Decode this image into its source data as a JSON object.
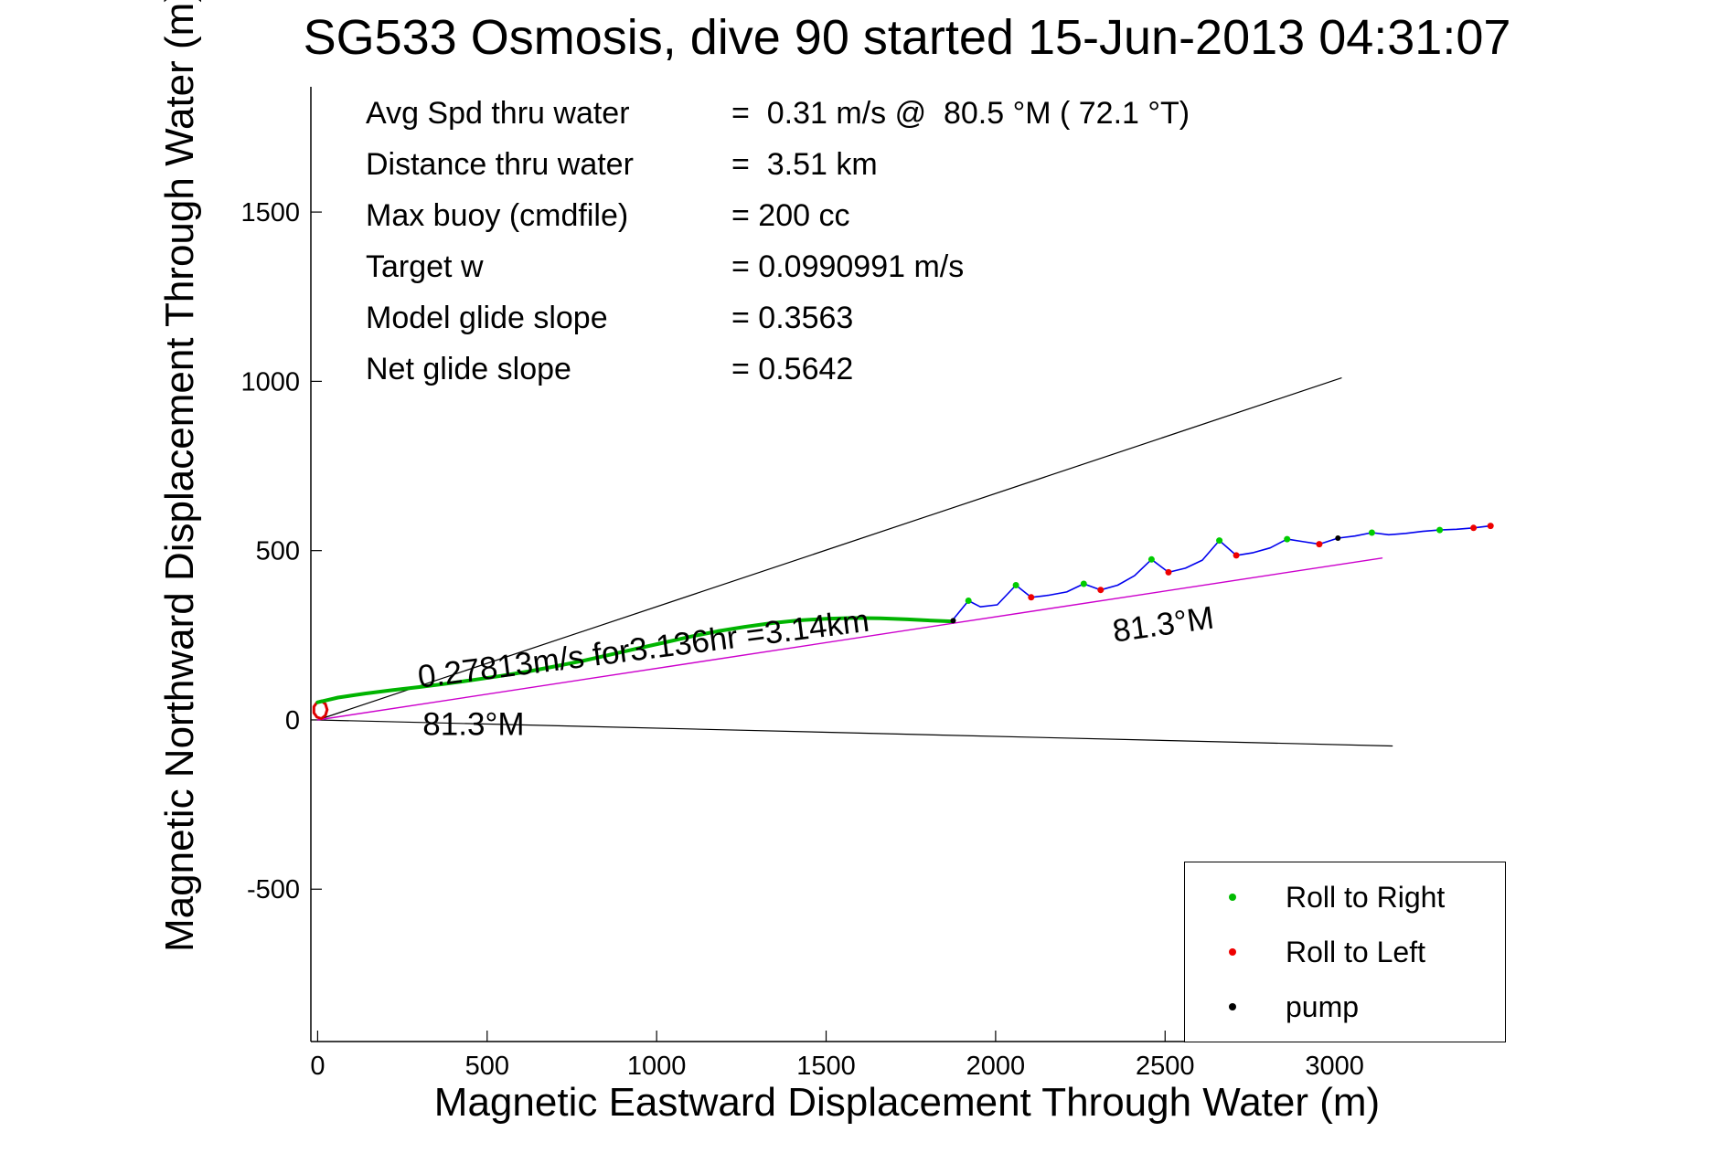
{
  "title": "SG533 Osmosis, dive 90 started 15-Jun-2013 04:31:07",
  "stats": [
    {
      "label": "Avg Spd thru water",
      "value": "=  0.31 m/s @  80.5 °M ( 72.1 °T)"
    },
    {
      "label": "Distance thru water",
      "value": "=  3.51 km"
    },
    {
      "label": "Max buoy (cmdfile)",
      "value": "= 200 cc"
    },
    {
      "label": "Target w",
      "value": "= 0.0990991 m/s"
    },
    {
      "label": "Model glide slope",
      "value": "= 0.3563"
    },
    {
      "label": "Net glide slope",
      "value": "= 0.5642"
    }
  ],
  "legend": {
    "position": "lower-right",
    "items": [
      {
        "name": "roll-right",
        "label": "Roll to Right",
        "color": "#00bb00"
      },
      {
        "name": "roll-left",
        "label": "Roll to Left",
        "color": "#ee0000"
      },
      {
        "name": "pump",
        "label": "pump",
        "color": "#000000"
      }
    ]
  },
  "chart_data": {
    "type": "line",
    "title": "SG533 Osmosis, dive 90 started 15-Jun-2013 04:31:07",
    "xlabel": "Magnetic Eastward Displacement Through Water (m)",
    "ylabel": "Magnetic Northward Displacement Through Water (m)",
    "xlim": [
      -20,
      3500
    ],
    "ylim": [
      -950,
      1870
    ],
    "xticks": [
      0,
      500,
      1000,
      1500,
      2000,
      2500,
      3000
    ],
    "yticks": [
      -500,
      0,
      500,
      1000,
      1500
    ],
    "grid": false,
    "box": false,
    "annotations": [
      {
        "text": "0.27813m/s for3.136hr =3.14km",
        "x": 300,
        "y": 95,
        "rotation": -7.2
      },
      {
        "text": "81.3°M",
        "x": 310,
        "y": -45,
        "rotation": 0
      },
      {
        "text": "81.3°M",
        "x": 2350,
        "y": 230,
        "rotation": -8
      }
    ],
    "series": [
      {
        "name": "bearing-fan-upper",
        "type": "line",
        "color": "#000000",
        "width": 1.2,
        "points": [
          [
            0,
            0
          ],
          [
            3020,
            1010
          ]
        ]
      },
      {
        "name": "bearing-fan-lower",
        "type": "line",
        "color": "#000000",
        "width": 1.2,
        "points": [
          [
            0,
            0
          ],
          [
            3170,
            -77
          ]
        ]
      },
      {
        "name": "desired-track-81.3M",
        "type": "line",
        "color": "#cc00cc",
        "width": 1.4,
        "points": [
          [
            0,
            0
          ],
          [
            3140,
            478
          ]
        ]
      },
      {
        "name": "dive-start-loop",
        "type": "line",
        "color": "#dd0000",
        "width": 3,
        "points": [
          [
            28,
            30
          ],
          [
            23,
            47
          ],
          [
            11,
            56
          ],
          [
            -2,
            52
          ],
          [
            -11,
            39
          ],
          [
            -11,
            21
          ],
          [
            -2,
            8
          ],
          [
            11,
            4
          ],
          [
            23,
            13
          ],
          [
            28,
            30
          ]
        ]
      },
      {
        "name": "glide-track-through-water",
        "type": "line",
        "color": "#00b400",
        "width": 4,
        "points": [
          [
            0,
            52
          ],
          [
            60,
            66
          ],
          [
            140,
            78
          ],
          [
            220,
            88
          ],
          [
            300,
            97
          ],
          [
            380,
            107
          ],
          [
            460,
            118
          ],
          [
            540,
            130
          ],
          [
            620,
            143
          ],
          [
            700,
            158
          ],
          [
            780,
            174
          ],
          [
            860,
            192
          ],
          [
            940,
            210
          ],
          [
            1020,
            228
          ],
          [
            1100,
            246
          ],
          [
            1180,
            262
          ],
          [
            1260,
            275
          ],
          [
            1340,
            286
          ],
          [
            1420,
            294
          ],
          [
            1500,
            299
          ],
          [
            1580,
            301
          ],
          [
            1660,
            300
          ],
          [
            1740,
            297
          ],
          [
            1820,
            293
          ],
          [
            1870,
            291
          ]
        ]
      },
      {
        "name": "surface-drift-track",
        "type": "line",
        "color": "#0000ee",
        "width": 1.6,
        "points": [
          [
            1870,
            291
          ],
          [
            1920,
            352
          ],
          [
            1955,
            334
          ],
          [
            2005,
            340
          ],
          [
            2060,
            398
          ],
          [
            2105,
            362
          ],
          [
            2155,
            368
          ],
          [
            2210,
            378
          ],
          [
            2260,
            402
          ],
          [
            2310,
            384
          ],
          [
            2360,
            398
          ],
          [
            2410,
            426
          ],
          [
            2460,
            474
          ],
          [
            2510,
            436
          ],
          [
            2560,
            448
          ],
          [
            2610,
            472
          ],
          [
            2660,
            530
          ],
          [
            2710,
            486
          ],
          [
            2760,
            494
          ],
          [
            2810,
            508
          ],
          [
            2860,
            534
          ],
          [
            2910,
            526
          ],
          [
            2955,
            519
          ],
          [
            3010,
            537
          ],
          [
            3060,
            543
          ],
          [
            3110,
            553
          ],
          [
            3160,
            547
          ],
          [
            3210,
            551
          ],
          [
            3260,
            557
          ],
          [
            3310,
            561
          ],
          [
            3360,
            563
          ],
          [
            3410,
            567
          ],
          [
            3460,
            573
          ]
        ]
      },
      {
        "name": "roll-right-markers",
        "type": "scatter",
        "color": "#00cc00",
        "size": 3.5,
        "points": [
          [
            1920,
            352
          ],
          [
            2060,
            398
          ],
          [
            2260,
            402
          ],
          [
            2460,
            474
          ],
          [
            2660,
            530
          ],
          [
            2860,
            534
          ],
          [
            3110,
            553
          ],
          [
            3310,
            561
          ]
        ]
      },
      {
        "name": "roll-left-markers",
        "type": "scatter",
        "color": "#ee0000",
        "size": 3.5,
        "points": [
          [
            2105,
            362
          ],
          [
            2310,
            384
          ],
          [
            2510,
            436
          ],
          [
            2710,
            486
          ],
          [
            2955,
            519
          ],
          [
            3410,
            567
          ],
          [
            3460,
            573
          ]
        ]
      },
      {
        "name": "pump-markers",
        "type": "scatter",
        "color": "#000000",
        "size": 3,
        "points": [
          [
            1875,
            293
          ],
          [
            3010,
            537
          ]
        ]
      }
    ]
  }
}
